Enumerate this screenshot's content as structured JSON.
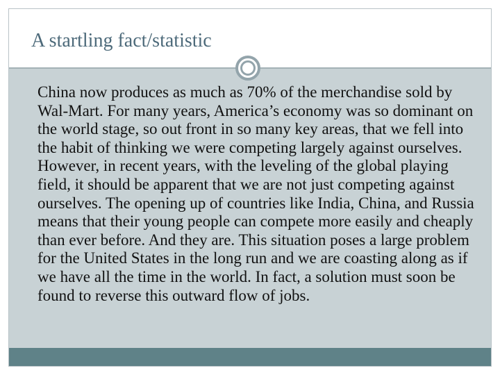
{
  "slide": {
    "title": "A startling fact/statistic",
    "body": "China now produces as much as 70% of the merchandise sold by Wal-Mart. For many years, America’s economy was so dominant on the world stage, so out front in so many key areas, that we fell into the habit of thinking we were competing largely against ourselves. However, in recent years, with the leveling of the global playing field, it should be apparent that we are not just competing against ourselves. The opening up of countries like India, China, and Russia means that their young people can compete more easily and cheaply than ever before. And they are. This situation poses a large problem for the United States in the long run and we are coasting along as if we have all the time in the world. In fact, a solution must soon be found to reverse this outward flow of jobs."
  },
  "colors": {
    "title": "#4d6a7a",
    "panel": "#c8d2d5",
    "footer": "#5f8288",
    "ornament": "#93a4ab"
  },
  "icons": {
    "divider_ornament": "ring-ornament-icon"
  }
}
